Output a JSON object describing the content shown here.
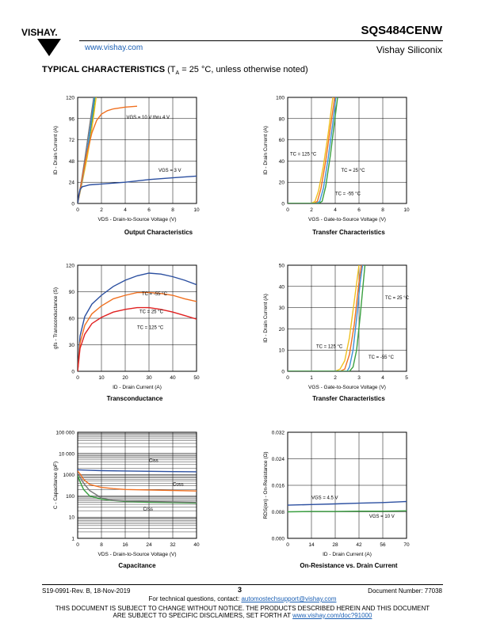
{
  "header": {
    "brand": "VISHAY.",
    "url": "www.vishay.com",
    "part_number": "SQS484CENW",
    "company": "Vishay Siliconix"
  },
  "section": {
    "title": "TYPICAL CHARACTERISTICS",
    "condition_prefix": "(T",
    "condition_sub": "A",
    "condition_rest": " = 25 °C, unless otherwise noted)"
  },
  "colors": {
    "blue": "#2b4fa0",
    "orange": "#f07020",
    "gray": "#777777",
    "green": "#3aa040",
    "yellow": "#f0c020",
    "lightblue": "#3d8fd8",
    "red": "#e02020"
  },
  "chart_data": [
    {
      "id": "output",
      "type": "line",
      "title": "Output Characteristics",
      "xlabel": "VDS - Drain-to-Source Voltage (V)",
      "ylabel": "ID - Drain Current (A)",
      "xlim": [
        0,
        10
      ],
      "ylim": [
        0,
        120
      ],
      "xticks": [
        "0",
        "2",
        "4",
        "6",
        "8",
        "10"
      ],
      "yticks": [
        "0",
        "24",
        "48",
        "72",
        "96",
        "120"
      ],
      "annotations": [
        "VGS = 10 V thru 4 V",
        "VGS = 3 V"
      ],
      "series": [
        {
          "color": "#777777",
          "x": [
            0,
            0.3,
            0.6,
            0.9,
            1.2,
            1.35
          ],
          "y": [
            0,
            24,
            50,
            78,
            106,
            120
          ]
        },
        {
          "color": "#3aa040",
          "x": [
            0,
            0.35,
            0.7,
            1.0,
            1.3,
            1.45
          ],
          "y": [
            0,
            24,
            50,
            75,
            102,
            120
          ]
        },
        {
          "color": "#f0c020",
          "x": [
            0,
            0.4,
            0.8,
            1.1,
            1.4,
            1.55
          ],
          "y": [
            0,
            25,
            52,
            76,
            104,
            120
          ]
        },
        {
          "color": "#3d8fd8",
          "x": [
            0,
            0.35,
            0.65,
            0.95,
            1.25,
            1.4
          ],
          "y": [
            0,
            24,
            48,
            74,
            104,
            120
          ]
        },
        {
          "color": "#f07020",
          "x": [
            0,
            0.4,
            0.8,
            1.2,
            1.6,
            2.0,
            2.5,
            3.0,
            4.0,
            5.0
          ],
          "y": [
            0,
            30,
            58,
            80,
            94,
            101,
            105,
            107,
            109,
            110
          ]
        },
        {
          "color": "#2b4fa0",
          "x": [
            0,
            0.1,
            0.2,
            0.4,
            0.7,
            1,
            2,
            4,
            6,
            8,
            10
          ],
          "y": [
            0,
            10,
            16,
            19,
            20,
            21,
            22,
            24,
            27,
            29,
            31
          ]
        }
      ]
    },
    {
      "id": "transfer1",
      "type": "line",
      "title": "Transfer Characteristics",
      "xlabel": "VGS - Gate-to-Source Voltage (V)",
      "ylabel": "ID - Drain Current (A)",
      "xlim": [
        0,
        10
      ],
      "ylim": [
        0,
        100
      ],
      "xticks": [
        "0",
        "2",
        "4",
        "6",
        "8",
        "10"
      ],
      "yticks": [
        "0",
        "20",
        "40",
        "60",
        "80",
        "100"
      ],
      "annotations": [
        "TC = 125 °C",
        "TC = 25 °C",
        "TC = -55 °C"
      ],
      "series": [
        {
          "color": "#f0c020",
          "name": "TC = 125 °C",
          "x": [
            0,
            2.0,
            2.3,
            2.6,
            3.0,
            3.4,
            3.8
          ],
          "y": [
            0,
            0,
            2,
            12,
            35,
            65,
            100
          ]
        },
        {
          "color": "#f07020",
          "x": [
            0,
            2.2,
            2.5,
            2.8,
            3.2,
            3.6,
            3.95
          ],
          "y": [
            0,
            0,
            2,
            14,
            40,
            72,
            100
          ]
        },
        {
          "color": "#3d8fd8",
          "name": "TC = 25 °C",
          "x": [
            0,
            2.4,
            2.7,
            3.0,
            3.4,
            3.8,
            4.05
          ],
          "y": [
            0,
            0,
            2,
            14,
            42,
            76,
            100
          ]
        },
        {
          "color": "#3aa040",
          "name": "TC = -55 °C",
          "x": [
            0,
            2.6,
            2.9,
            3.2,
            3.6,
            3.95,
            4.2
          ],
          "y": [
            0,
            0,
            2,
            16,
            46,
            78,
            100
          ]
        }
      ]
    },
    {
      "id": "transconductance",
      "type": "line",
      "title": "Transconductance",
      "xlabel": "ID - Drain Current (A)",
      "ylabel": "gfs - Transconductance (S)",
      "xlim": [
        0,
        50
      ],
      "ylim": [
        0,
        120
      ],
      "xticks": [
        "0",
        "10",
        "20",
        "30",
        "40",
        "50"
      ],
      "yticks": [
        "0",
        "30",
        "60",
        "90",
        "120"
      ],
      "annotations": [
        "TC = -55 °C",
        "TC = 25 °C",
        "TC = 125 °C"
      ],
      "series": [
        {
          "color": "#2b4fa0",
          "name": "TC = -55 °C",
          "x": [
            0,
            1,
            3,
            6,
            10,
            15,
            20,
            25,
            30,
            35,
            40,
            45,
            50
          ],
          "y": [
            0,
            40,
            62,
            76,
            86,
            96,
            103,
            108,
            111,
            110,
            107,
            103,
            98
          ]
        },
        {
          "color": "#f07020",
          "name": "TC = 25 °C",
          "x": [
            0,
            1,
            3,
            6,
            10,
            15,
            20,
            25,
            30,
            35,
            40,
            45,
            50
          ],
          "y": [
            0,
            32,
            52,
            65,
            74,
            82,
            86,
            89,
            89,
            88,
            86,
            82,
            79
          ]
        },
        {
          "color": "#e02020",
          "name": "TC = 125 °C",
          "x": [
            0,
            1,
            3,
            6,
            10,
            15,
            20,
            25,
            30,
            35,
            40,
            45,
            50
          ],
          "y": [
            0,
            26,
            42,
            54,
            61,
            67,
            70,
            72,
            72,
            70,
            67,
            63,
            59
          ]
        }
      ]
    },
    {
      "id": "transfer2",
      "type": "line",
      "title": "Transfer Characteristics",
      "xlabel": "VGS - Gate-to-Source Voltage (V)",
      "ylabel": "ID - Drain Current (A)",
      "xlim": [
        0,
        5
      ],
      "ylim": [
        0,
        50
      ],
      "xticks": [
        "0",
        "1",
        "2",
        "3",
        "4",
        "5"
      ],
      "yticks": [
        "0",
        "10",
        "20",
        "30",
        "40",
        "50"
      ],
      "annotations": [
        "TC = 125 °C",
        "TC = 25 °C",
        "TC = -55 °C"
      ],
      "series": [
        {
          "color": "#f0c020",
          "name": "TC = 125 °C",
          "x": [
            0,
            2.0,
            2.2,
            2.4,
            2.6,
            2.8,
            3.0
          ],
          "y": [
            0,
            0,
            1,
            5,
            16,
            33,
            50
          ]
        },
        {
          "color": "#f07020",
          "x": [
            0,
            2.2,
            2.4,
            2.6,
            2.8,
            3.0,
            3.1
          ],
          "y": [
            0,
            0,
            1,
            8,
            22,
            42,
            50
          ]
        },
        {
          "color": "#3d8fd8",
          "name": "TC = 25 °C",
          "x": [
            0,
            2.5,
            2.6,
            2.75,
            2.9,
            3.05,
            3.15
          ],
          "y": [
            0,
            0,
            2,
            10,
            25,
            42,
            50
          ]
        },
        {
          "color": "#3aa040",
          "name": "TC = -55 °C",
          "x": [
            0,
            2.6,
            2.75,
            2.9,
            3.05,
            3.2,
            3.25
          ],
          "y": [
            0,
            0,
            2,
            10,
            26,
            44,
            50
          ]
        }
      ]
    },
    {
      "id": "capacitance",
      "type": "line",
      "title": "Capacitance",
      "xlabel": "VDS - Drain-to-Source Voltage (V)",
      "ylabel": "C - Capacitance (pF)",
      "xlim": [
        0,
        40
      ],
      "ylim": [
        1,
        100000
      ],
      "yscale": "log",
      "xticks": [
        "0",
        "8",
        "16",
        "24",
        "32",
        "40"
      ],
      "yticks": [
        "1",
        "10",
        "100",
        "1000",
        "10 000",
        "100 000"
      ],
      "annotations": [
        "Ciss",
        "Coss",
        "Crss"
      ],
      "series": [
        {
          "color": "#2b4fa0",
          "name": "Ciss",
          "x": [
            0,
            4,
            8,
            16,
            24,
            32,
            40
          ],
          "y": [
            1700,
            1600,
            1550,
            1500,
            1450,
            1400,
            1380
          ]
        },
        {
          "color": "#f07020",
          "name": "Coss",
          "x": [
            0,
            1,
            2,
            4,
            8,
            12,
            16,
            24,
            32,
            40
          ],
          "y": [
            1500,
            1000,
            600,
            350,
            250,
            220,
            200,
            190,
            180,
            170
          ]
        },
        {
          "color": "#3aa040",
          "name": "Crss",
          "x": [
            0,
            1,
            2,
            4,
            8,
            12,
            16,
            24,
            32,
            40
          ],
          "y": [
            900,
            400,
            200,
            100,
            70,
            60,
            55,
            50,
            48,
            46
          ]
        },
        {
          "color": "#777777",
          "x": [
            0,
            1,
            2,
            4,
            8,
            12,
            16,
            24,
            32,
            40
          ],
          "y": [
            1200,
            700,
            400,
            180,
            80,
            62,
            58,
            55,
            52,
            50
          ]
        }
      ]
    },
    {
      "id": "on_resistance",
      "type": "line",
      "title": "On-Resistance vs. Drain Current",
      "xlabel": "ID - Drain Current (A)",
      "ylabel": "RDS(on) - On-Resistance (Ω)",
      "xlim": [
        0,
        70
      ],
      "ylim": [
        0,
        0.032
      ],
      "xticks": [
        "0",
        "14",
        "28",
        "42",
        "56",
        "70"
      ],
      "yticks": [
        "0.000",
        "0.008",
        "0.016",
        "0.024",
        "0.032"
      ],
      "annotations": [
        "VGS = 4.5 V",
        "VGS = 10 V"
      ],
      "series": [
        {
          "color": "#2b4fa0",
          "name": "VGS = 4.5 V",
          "x": [
            0,
            14,
            28,
            42,
            56,
            70
          ],
          "y": [
            0.01,
            0.0102,
            0.0104,
            0.0106,
            0.0108,
            0.0111
          ]
        },
        {
          "color": "#3aa040",
          "name": "VGS = 10 V",
          "x": [
            0,
            14,
            28,
            42,
            56,
            70
          ],
          "y": [
            0.008,
            0.0081,
            0.0081,
            0.0082,
            0.0082,
            0.0083
          ]
        }
      ]
    }
  ],
  "footer": {
    "doc_rev": "S19-0991-Rev. B, 18-Nov-2019",
    "page": "3",
    "doc_number": "Document Number: 77038",
    "contact_prefix": "For technical questions, contact: ",
    "contact_email": "automostechsupport@vishay.com",
    "disclaimer1": "THIS DOCUMENT IS SUBJECT TO CHANGE WITHOUT NOTICE. THE PRODUCTS DESCRIBED HEREIN AND THIS DOCUMENT",
    "disclaimer2_prefix": "ARE SUBJECT TO SPECIFIC DISCLAIMERS, SET FORTH AT ",
    "disclaimer2_link": "www.vishay.com/doc?91000"
  }
}
